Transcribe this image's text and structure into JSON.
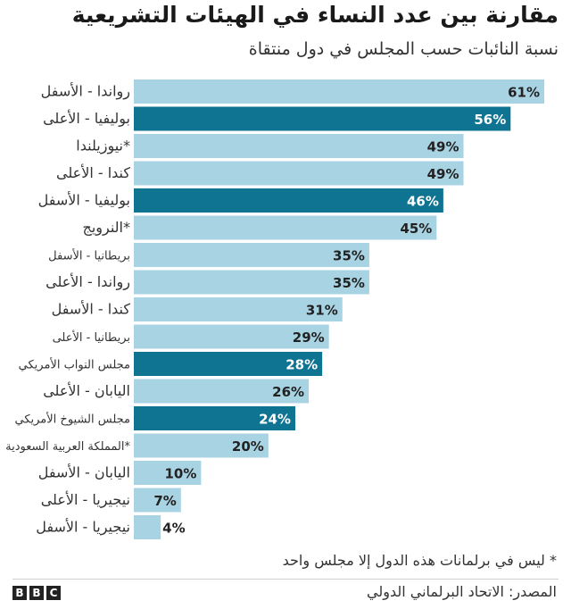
{
  "header": {
    "title": "مقارنة بين عدد النساء في الهيئات التشريعية",
    "subtitle": "نسبة النائبات حسب المجلس في دول منتقاة"
  },
  "footer": {
    "footnote": "* ليس في برلمانات هذه الدول إلا مجلس واحد",
    "source": "المصدر: الاتحاد البرلماني الدولي",
    "logo_letters": [
      "B",
      "B",
      "C"
    ]
  },
  "colors": {
    "light_bar": "#a8d3e3",
    "dark_bar": "#0f7392",
    "label_on_light": "#222222",
    "label_on_dark": "#ffffff"
  },
  "chart_data": {
    "type": "bar",
    "orientation": "horizontal",
    "categories": [
      "رواندا - الأسفل",
      "بوليفيا - الأعلى",
      "نيوزيلندا*",
      "كندا - الأعلى",
      "بوليفيا - الأسفل",
      "النرويج*",
      "بريطانيا - الأسفل",
      "رواندا - الأعلى",
      "كندا - الأسفل",
      "بريطانيا - الأعلى",
      "مجلس النواب الأمريكي",
      "اليابان - الأعلى",
      "مجلس الشيوخ الأمريكي",
      "المملكة العربية السعودية*",
      "اليابان - الأسفل",
      "نيجيريا - الأعلى",
      "نيجيريا - الأسفل"
    ],
    "values": [
      61,
      56,
      49,
      49,
      46,
      45,
      35,
      35,
      31,
      29,
      28,
      26,
      24,
      20,
      10,
      7,
      4
    ],
    "value_labels": [
      "61%",
      "56%",
      "49%",
      "49%",
      "46%",
      "45%",
      "35%",
      "35%",
      "31%",
      "29%",
      "28%",
      "26%",
      "24%",
      "20%",
      "10%",
      "7%",
      "4%"
    ],
    "highlighted": [
      false,
      true,
      false,
      false,
      true,
      false,
      false,
      false,
      false,
      false,
      true,
      false,
      true,
      false,
      false,
      false,
      false
    ],
    "xlim": [
      0,
      61
    ],
    "grid": false,
    "legend": "none"
  }
}
